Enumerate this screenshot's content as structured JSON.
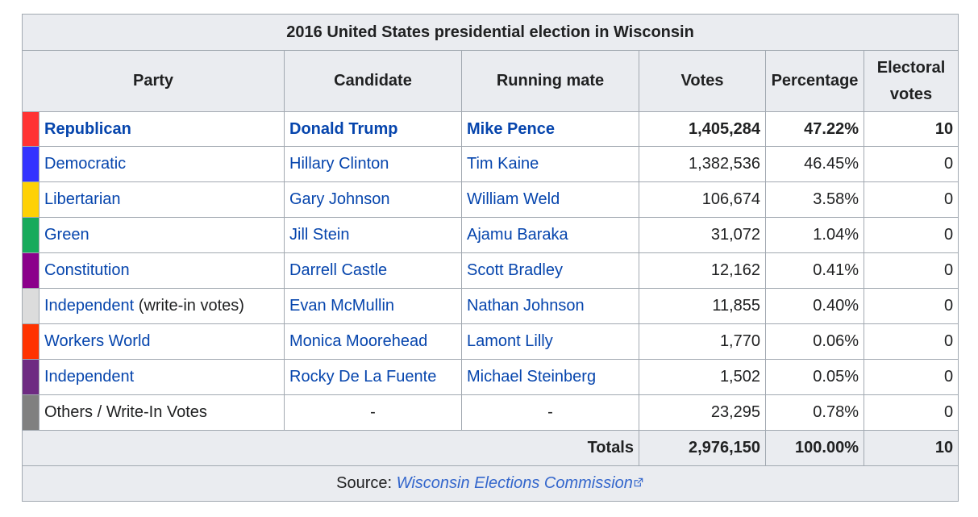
{
  "table": {
    "caption": "2016 United States presidential election in Wisconsin",
    "headers": {
      "party": "Party",
      "candidate": "Candidate",
      "running_mate": "Running mate",
      "votes": "Votes",
      "percentage": "Percentage",
      "electoral_votes_line1": "Electoral",
      "electoral_votes_line2": "votes"
    },
    "rows": [
      {
        "color": "#ff3333",
        "party": "Republican",
        "party_note": "",
        "party_link": true,
        "candidate": "Donald Trump",
        "candidate_link": true,
        "running_mate": "Mike Pence",
        "running_mate_link": true,
        "votes": "1,405,284",
        "percentage": "47.22%",
        "electoral_votes": "10",
        "winner": true
      },
      {
        "color": "#3333ff",
        "party": "Democratic",
        "party_note": "",
        "party_link": true,
        "candidate": "Hillary Clinton",
        "candidate_link": true,
        "running_mate": "Tim Kaine",
        "running_mate_link": true,
        "votes": "1,382,536",
        "percentage": "46.45%",
        "electoral_votes": "0",
        "winner": false
      },
      {
        "color": "#fed105",
        "party": "Libertarian",
        "party_note": "",
        "party_link": true,
        "candidate": "Gary Johnson",
        "candidate_link": true,
        "running_mate": "William Weld",
        "running_mate_link": true,
        "votes": "106,674",
        "percentage": "3.58%",
        "electoral_votes": "0",
        "winner": false
      },
      {
        "color": "#17aa5c",
        "party": "Green",
        "party_note": "",
        "party_link": true,
        "candidate": "Jill Stein",
        "candidate_link": true,
        "running_mate": "Ajamu Baraka",
        "running_mate_link": true,
        "votes": "31,072",
        "percentage": "1.04%",
        "electoral_votes": "0",
        "winner": false
      },
      {
        "color": "#8b008b",
        "party": "Constitution",
        "party_note": "",
        "party_link": true,
        "candidate": "Darrell Castle",
        "candidate_link": true,
        "running_mate": "Scott Bradley",
        "running_mate_link": true,
        "votes": "12,162",
        "percentage": "0.41%",
        "electoral_votes": "0",
        "winner": false
      },
      {
        "color": "#dcdcdc",
        "party": "Independent",
        "party_note": " (write-in votes)",
        "party_link": true,
        "candidate": "Evan McMullin",
        "candidate_link": true,
        "running_mate": "Nathan Johnson",
        "running_mate_link": true,
        "votes": "11,855",
        "percentage": "0.40%",
        "electoral_votes": "0",
        "winner": false
      },
      {
        "color": "#ff3300",
        "party": "Workers World",
        "party_note": "",
        "party_link": true,
        "candidate": "Monica Moorehead",
        "candidate_link": true,
        "running_mate": "Lamont Lilly",
        "running_mate_link": true,
        "votes": "1,770",
        "percentage": "0.06%",
        "electoral_votes": "0",
        "winner": false
      },
      {
        "color": "#6e2b82",
        "party": "Independent",
        "party_note": "",
        "party_link": true,
        "candidate": "Rocky De La Fuente",
        "candidate_link": true,
        "running_mate": "Michael Steinberg",
        "running_mate_link": true,
        "votes": "1,502",
        "percentage": "0.05%",
        "electoral_votes": "0",
        "winner": false
      },
      {
        "color": "#808080",
        "party": "Others / Write-In Votes",
        "party_note": "",
        "party_link": false,
        "candidate": "-",
        "candidate_link": false,
        "running_mate": "-",
        "running_mate_link": false,
        "votes": "23,295",
        "percentage": "0.78%",
        "electoral_votes": "0",
        "winner": false
      }
    ],
    "totals": {
      "label": "Totals",
      "votes": "2,976,150",
      "percentage": "100.00%",
      "electoral_votes": "10"
    },
    "source": {
      "prefix": "Source: ",
      "link_text": "Wisconsin Elections Commission",
      "icon": "external-link-icon"
    }
  },
  "colors": {
    "link": "#0645ad",
    "external_link": "#3366cc",
    "header_bg": "#eaecf0",
    "border": "#a2a9b1"
  }
}
